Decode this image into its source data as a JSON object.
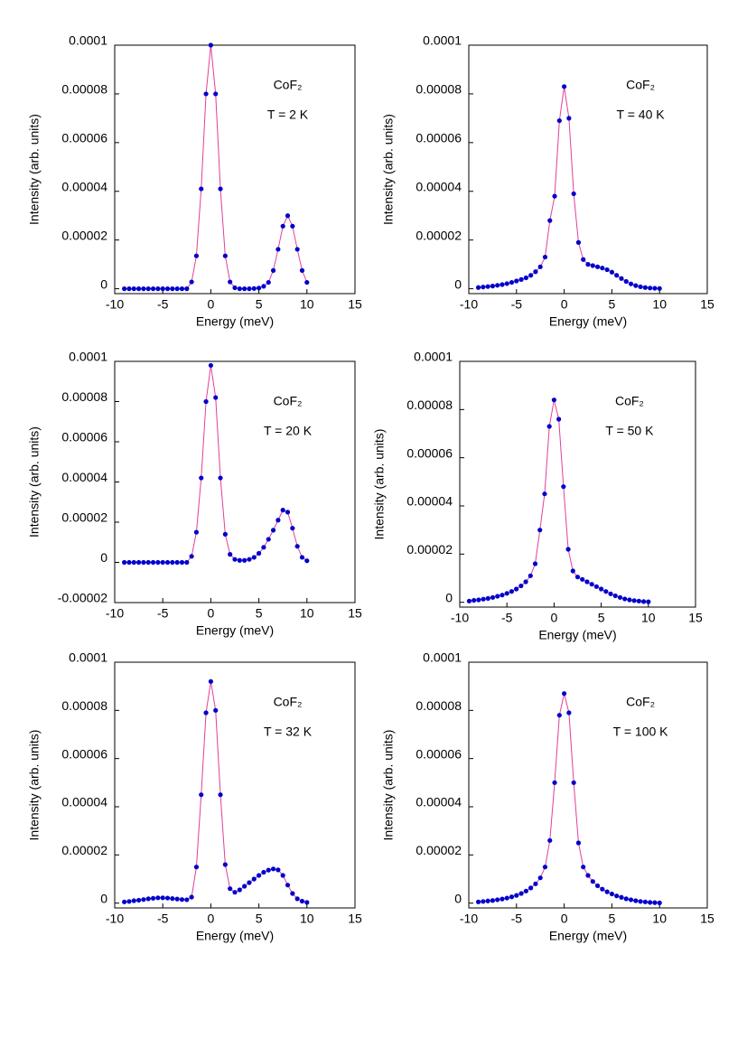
{
  "chart_data": [
    {
      "type": "scatter",
      "annotations": [
        "CoF₂",
        "T = 2 K"
      ],
      "xlabel": "Energy (meV)",
      "ylabel": "Intensity (arb. units)",
      "xlim": [
        -10,
        15
      ],
      "xticks": [
        -10,
        -5,
        0,
        5,
        10,
        15
      ],
      "ylim": [
        -2e-06,
        0.0001
      ],
      "yticks": [
        0,
        2e-05,
        4e-05,
        6e-05,
        8e-05,
        0.0001
      ],
      "color": "#0000cc",
      "line": true,
      "line_color": "#e0409a",
      "x": [
        -9,
        -8.5,
        -8,
        -7.5,
        -7,
        -6.5,
        -6,
        -5.5,
        -5,
        -4.5,
        -4,
        -3.5,
        -3,
        -2.5,
        -2,
        -1.5,
        -1,
        -0.5,
        0,
        0.5,
        1,
        1.5,
        2,
        2.5,
        3,
        3.5,
        4,
        4.5,
        5,
        5.5,
        6,
        6.5,
        7,
        7.5,
        8,
        8.5,
        9,
        9.5,
        10
      ],
      "values": [
        0,
        0,
        0,
        0,
        0,
        0,
        0,
        0,
        0,
        0,
        0,
        0,
        0,
        0,
        2.8e-06,
        1.35e-05,
        4.1e-05,
        8e-05,
        0.0001,
        8e-05,
        4.1e-05,
        1.35e-05,
        2.8e-06,
        4e-07,
        0,
        0,
        0,
        1e-07,
        3e-07,
        1e-06,
        2.6e-06,
        7.5e-06,
        1.62e-05,
        2.57e-05,
        3e-05,
        2.57e-05,
        1.62e-05,
        7.5e-06,
        2.6e-06
      ]
    },
    {
      "type": "scatter",
      "annotations": [
        "CoF₂",
        "T = 40 K"
      ],
      "xlabel": "Energy (meV)",
      "ylabel": "Intensity (arb. units)",
      "xlim": [
        -10,
        15
      ],
      "xticks": [
        -10,
        -5,
        0,
        5,
        10,
        15
      ],
      "ylim": [
        -2e-06,
        0.0001
      ],
      "yticks": [
        0,
        2e-05,
        4e-05,
        6e-05,
        8e-05,
        0.0001
      ],
      "color": "#0000cc",
      "line": true,
      "line_color": "#e0409a",
      "x": [
        -9,
        -8.5,
        -8,
        -7.5,
        -7,
        -6.5,
        -6,
        -5.5,
        -5,
        -4.5,
        -4,
        -3.5,
        -3,
        -2.5,
        -2,
        -1.5,
        -1,
        -0.5,
        0,
        0.5,
        1,
        1.5,
        2,
        2.5,
        3,
        3.5,
        4,
        4.5,
        5,
        5.5,
        6,
        6.5,
        7,
        7.5,
        8,
        8.5,
        9,
        9.5,
        10
      ],
      "values": [
        5e-07,
        7e-07,
        9e-07,
        1.1e-06,
        1.4e-06,
        1.7e-06,
        2.1e-06,
        2.6e-06,
        3.2e-06,
        3.8e-06,
        4.5e-06,
        5.5e-06,
        7e-06,
        9e-06,
        1.3e-05,
        2.8e-05,
        3.8e-05,
        6.9e-05,
        8.3e-05,
        7e-05,
        3.9e-05,
        1.9e-05,
        1.2e-05,
        1e-05,
        9.5e-06,
        9e-06,
        8.5e-06,
        7.8e-06,
        6.8e-06,
        5.5e-06,
        4.2e-06,
        3e-06,
        2e-06,
        1.3e-06,
        8e-07,
        5e-07,
        3e-07,
        2e-07,
        1e-07
      ]
    },
    {
      "type": "scatter",
      "annotations": [
        "CoF₂",
        "T = 20 K"
      ],
      "xlabel": "Energy (meV)",
      "ylabel": "Intensity (arb. units)",
      "xlim": [
        -10,
        15
      ],
      "xticks": [
        -10,
        -5,
        0,
        5,
        10,
        15
      ],
      "ylim": [
        -2e-05,
        0.0001
      ],
      "yticks": [
        -2e-05,
        0,
        2e-05,
        4e-05,
        6e-05,
        8e-05,
        0.0001
      ],
      "color": "#0000cc",
      "line": true,
      "line_color": "#e0409a",
      "x": [
        -9,
        -8.5,
        -8,
        -7.5,
        -7,
        -6.5,
        -6,
        -5.5,
        -5,
        -4.5,
        -4,
        -3.5,
        -3,
        -2.5,
        -2,
        -1.5,
        -1,
        -0.5,
        0,
        0.5,
        1,
        1.5,
        2,
        2.5,
        3,
        3.5,
        4,
        4.5,
        5,
        5.5,
        6,
        6.5,
        7,
        7.5,
        8,
        8.5,
        9,
        9.5,
        10
      ],
      "values": [
        0,
        0,
        0,
        0,
        0,
        0,
        0,
        0,
        0,
        0,
        0,
        0,
        0,
        0,
        3e-06,
        1.5e-05,
        4.2e-05,
        8e-05,
        9.8e-05,
        8.2e-05,
        4.2e-05,
        1.4e-05,
        4e-06,
        1.5e-06,
        1e-06,
        1e-06,
        1.5e-06,
        2.5e-06,
        4.5e-06,
        7.5e-06,
        1.15e-05,
        1.6e-05,
        2.1e-05,
        2.6e-05,
        2.5e-05,
        1.7e-05,
        8e-06,
        2.5e-06,
        8e-07
      ]
    },
    {
      "type": "scatter",
      "annotations": [
        "CoF₂",
        "T = 50 K"
      ],
      "xlabel": "Energy (meV)",
      "ylabel": "Intensity (arb. units)",
      "xlim": [
        -10,
        15
      ],
      "xticks": [
        -10,
        -5,
        0,
        5,
        10,
        15
      ],
      "ylim": [
        -2e-06,
        0.0001
      ],
      "yticks": [
        0,
        2e-05,
        4e-05,
        6e-05,
        8e-05,
        0.0001
      ],
      "color": "#0000cc",
      "line": true,
      "line_color": "#e0409a",
      "x": [
        -9,
        -8.5,
        -8,
        -7.5,
        -7,
        -6.5,
        -6,
        -5.5,
        -5,
        -4.5,
        -4,
        -3.5,
        -3,
        -2.5,
        -2,
        -1.5,
        -1,
        -0.5,
        0,
        0.5,
        1,
        1.5,
        2,
        2.5,
        3,
        3.5,
        4,
        4.5,
        5,
        5.5,
        6,
        6.5,
        7,
        7.5,
        8,
        8.5,
        9,
        9.5,
        10
      ],
      "values": [
        5e-07,
        8e-07,
        1e-06,
        1.3e-06,
        1.6e-06,
        2e-06,
        2.5e-06,
        3e-06,
        3.7e-06,
        4.5e-06,
        5.5e-06,
        6.8e-06,
        8.5e-06,
        1.1e-05,
        1.6e-05,
        3e-05,
        4.5e-05,
        7.3e-05,
        8.4e-05,
        7.6e-05,
        4.8e-05,
        2.2e-05,
        1.3e-05,
        1.05e-05,
        9.5e-06,
        8.5e-06,
        7.5e-06,
        6.5e-06,
        5.5e-06,
        4.5e-06,
        3.5e-06,
        2.7e-06,
        2e-06,
        1.4e-06,
        1e-06,
        7e-07,
        5e-07,
        3e-07,
        2e-07
      ]
    },
    {
      "type": "scatter",
      "annotations": [
        "CoF₂",
        "T = 32 K"
      ],
      "xlabel": "Energy (meV)",
      "ylabel": "Intensity (arb. units)",
      "xlim": [
        -10,
        15
      ],
      "xticks": [
        -10,
        -5,
        0,
        5,
        10,
        15
      ],
      "ylim": [
        -2e-06,
        0.0001
      ],
      "yticks": [
        0,
        2e-05,
        4e-05,
        6e-05,
        8e-05,
        0.0001
      ],
      "color": "#0000cc",
      "line": true,
      "line_color": "#e0409a",
      "x": [
        -9,
        -8.5,
        -8,
        -7.5,
        -7,
        -6.5,
        -6,
        -5.5,
        -5,
        -4.5,
        -4,
        -3.5,
        -3,
        -2.5,
        -2,
        -1.5,
        -1,
        -0.5,
        0,
        0.5,
        1,
        1.5,
        2,
        2.5,
        3,
        3.5,
        4,
        4.5,
        5,
        5.5,
        6,
        6.5,
        7,
        7.5,
        8,
        8.5,
        9,
        9.5,
        10
      ],
      "values": [
        5e-07,
        7e-07,
        1e-06,
        1.2e-06,
        1.5e-06,
        1.8e-06,
        2e-06,
        2.2e-06,
        2.2e-06,
        2.1e-06,
        1.9e-06,
        1.7e-06,
        1.5e-06,
        1.4e-06,
        2.5e-06,
        1.5e-05,
        4.5e-05,
        7.9e-05,
        9.2e-05,
        8e-05,
        4.5e-05,
        1.6e-05,
        6e-06,
        4.5e-06,
        5.5e-06,
        7e-06,
        8.5e-06,
        1e-05,
        1.15e-05,
        1.28e-05,
        1.37e-05,
        1.42e-05,
        1.38e-05,
        1.15e-05,
        7.5e-06,
        4e-06,
        1.8e-06,
        8e-07,
        3e-07
      ]
    },
    {
      "type": "scatter",
      "annotations": [
        "CoF₂",
        "T = 100 K"
      ],
      "xlabel": "Energy (meV)",
      "ylabel": "Intensity (arb. units)",
      "xlim": [
        -10,
        15
      ],
      "xticks": [
        -10,
        -5,
        0,
        5,
        10,
        15
      ],
      "ylim": [
        -2e-06,
        0.0001
      ],
      "yticks": [
        0,
        2e-05,
        4e-05,
        6e-05,
        8e-05,
        0.0001
      ],
      "color": "#0000cc",
      "line": true,
      "line_color": "#e0409a",
      "x": [
        -9,
        -8.5,
        -8,
        -7.5,
        -7,
        -6.5,
        -6,
        -5.5,
        -5,
        -4.5,
        -4,
        -3.5,
        -3,
        -2.5,
        -2,
        -1.5,
        -1,
        -0.5,
        0,
        0.5,
        1,
        1.5,
        2,
        2.5,
        3,
        3.5,
        4,
        4.5,
        5,
        5.5,
        6,
        6.5,
        7,
        7.5,
        8,
        8.5,
        9,
        9.5,
        10
      ],
      "values": [
        5e-07,
        7e-07,
        9e-07,
        1.1e-06,
        1.4e-06,
        1.7e-06,
        2.1e-06,
        2.6e-06,
        3.2e-06,
        4e-06,
        5e-06,
        6.3e-06,
        8e-06,
        1.05e-05,
        1.5e-05,
        2.6e-05,
        5e-05,
        7.8e-05,
        8.7e-05,
        7.9e-05,
        5e-05,
        2.5e-05,
        1.5e-05,
        1.15e-05,
        9e-06,
        7.2e-06,
        5.8e-06,
        4.7e-06,
        3.8e-06,
        3e-06,
        2.4e-06,
        1.8e-06,
        1.4e-06,
        1e-06,
        7e-07,
        5e-07,
        3e-07,
        2e-07,
        1e-07
      ]
    }
  ]
}
